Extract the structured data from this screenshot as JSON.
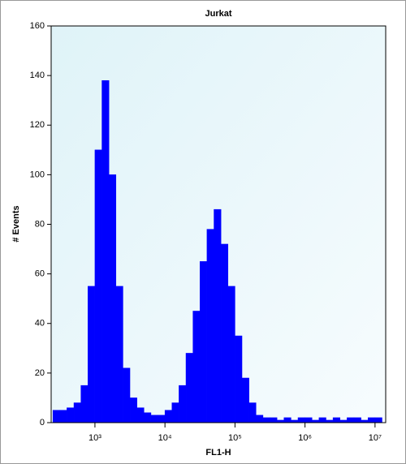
{
  "chart_data": {
    "type": "histogram",
    "title": "Jurkat",
    "xlabel": "FL1-H",
    "ylabel": "# Events",
    "xscale": "log",
    "color": "#0000ff",
    "bins": [
      251,
      316,
      398,
      501,
      631,
      794,
      1000,
      1259,
      1585,
      1995,
      2512,
      3162,
      3981,
      5012,
      6310,
      7943,
      10000,
      12589,
      15849,
      19953,
      25119,
      31623,
      39811,
      50119,
      63096,
      79433,
      100000,
      125893,
      158489,
      199526,
      251189,
      316228,
      398107,
      501187,
      630957,
      794328,
      1000000,
      1258925,
      1584893,
      1995262,
      2511886,
      3162278,
      3981072,
      5011872,
      6309573,
      7943282,
      10000000,
      12589254
    ],
    "counts": [
      5,
      5,
      6,
      8,
      15,
      55,
      110,
      138,
      100,
      55,
      22,
      10,
      6,
      4,
      3,
      3,
      5,
      8,
      15,
      28,
      45,
      65,
      78,
      86,
      72,
      55,
      35,
      18,
      8,
      3,
      2,
      2,
      1,
      2,
      1,
      2,
      2,
      1,
      2,
      1,
      2,
      1,
      2,
      2,
      1,
      2,
      2
    ],
    "xlim": [
      237,
      14200000
    ],
    "xticks": [
      {
        "value": 1000,
        "label": "10³"
      },
      {
        "value": 10000,
        "label": "10⁴"
      },
      {
        "value": 100000,
        "label": "10⁵"
      },
      {
        "value": 1000000,
        "label": "10⁶"
      },
      {
        "value": 10000000,
        "label": "10⁷"
      }
    ],
    "ylim": [
      0,
      160
    ],
    "yticks": [
      0,
      20,
      40,
      60,
      80,
      100,
      120,
      140,
      160
    ]
  }
}
